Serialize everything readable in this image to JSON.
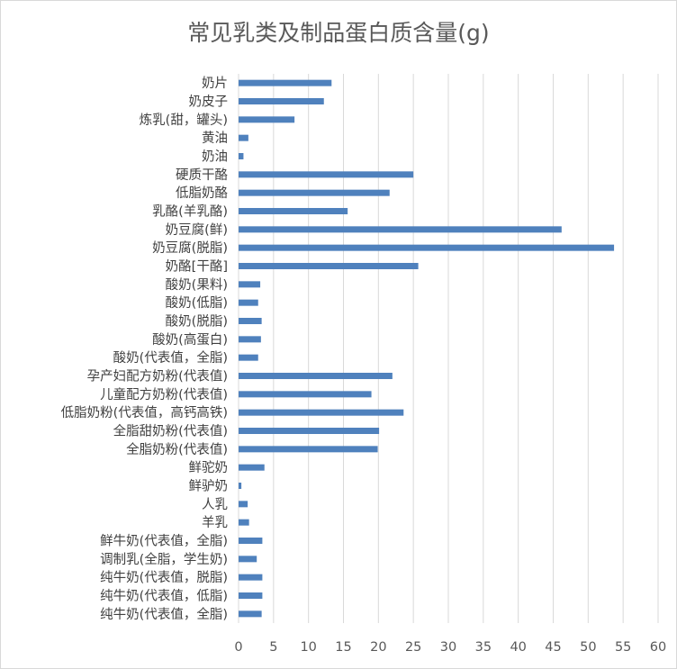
{
  "chart_data": {
    "type": "bar",
    "orientation": "horizontal",
    "title": "常见乳类及制品蛋白质含量(g)",
    "xlabel": "",
    "ylabel": "",
    "xlim": [
      0,
      60
    ],
    "x_ticks": [
      0,
      5,
      10,
      15,
      20,
      25,
      30,
      35,
      40,
      45,
      50,
      55,
      60
    ],
    "grid": "vertical",
    "legend": "none",
    "bar_color": "#4f81bd",
    "grid_color": "#d9d9d9",
    "categories": [
      "奶片",
      "奶皮子",
      "炼乳(甜，罐头)",
      "黄油",
      "奶油",
      "硬质干酪",
      "低脂奶酪",
      "乳酪(羊乳酪)",
      "奶豆腐(鲜)",
      "奶豆腐(脱脂)",
      "奶酪[干酪]",
      "酸奶(果料)",
      "酸奶(低脂)",
      "酸奶(脱脂)",
      "酸奶(高蛋白)",
      "酸奶(代表值，全脂)",
      "孕产妇配方奶粉(代表值)",
      "儿童配方奶粉(代表值)",
      "低脂奶粉(代表值，高钙高铁)",
      "全脂甜奶粉(代表值)",
      "全脂奶粉(代表值)",
      "鲜驼奶",
      "鲜驴奶",
      "人乳",
      "羊乳",
      "鲜牛奶(代表值，全脂)",
      "调制乳(全脂，学生奶)",
      "纯牛奶(代表值，脱脂)",
      "纯牛奶(代表值，低脂)",
      "纯牛奶(代表值，全脂)"
    ],
    "values": [
      13.3,
      12.2,
      8.0,
      1.4,
      0.7,
      25.0,
      21.6,
      15.6,
      46.2,
      53.7,
      25.7,
      3.1,
      2.8,
      3.3,
      3.2,
      2.8,
      22.0,
      19.0,
      23.6,
      20.1,
      19.9,
      3.7,
      0.4,
      1.3,
      1.5,
      3.4,
      2.6,
      3.4,
      3.4,
      3.3
    ]
  }
}
